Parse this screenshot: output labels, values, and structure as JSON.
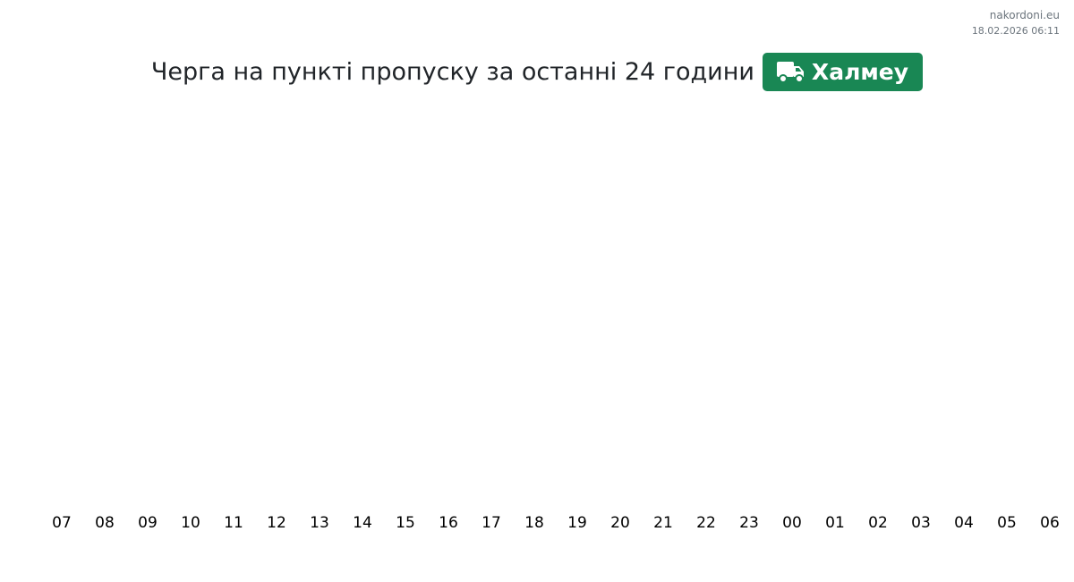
{
  "header": {
    "site": "nakordoni.eu",
    "timestamp": "18.02.2026 06:11",
    "title": "Черга на пункті пропуску за останні 24 години",
    "checkpoint": {
      "label": "Халмеу",
      "icon": "truck-icon",
      "color": "#198754"
    }
  },
  "chart_data": {
    "type": "bar",
    "title": "Черга на пункті пропуску за останні 24 години",
    "categories": [
      "07",
      "08",
      "09",
      "10",
      "11",
      "12",
      "13",
      "14",
      "15",
      "16",
      "17",
      "18",
      "19",
      "20",
      "21",
      "22",
      "23",
      "00",
      "01",
      "02",
      "03",
      "04",
      "05",
      "06"
    ],
    "values": [
      0,
      0,
      0,
      0,
      0,
      0,
      0,
      0,
      0,
      0,
      0,
      0,
      0,
      0,
      0,
      0,
      0,
      0,
      0,
      0,
      0,
      0,
      0,
      0
    ],
    "grid": false,
    "legend": "none"
  }
}
